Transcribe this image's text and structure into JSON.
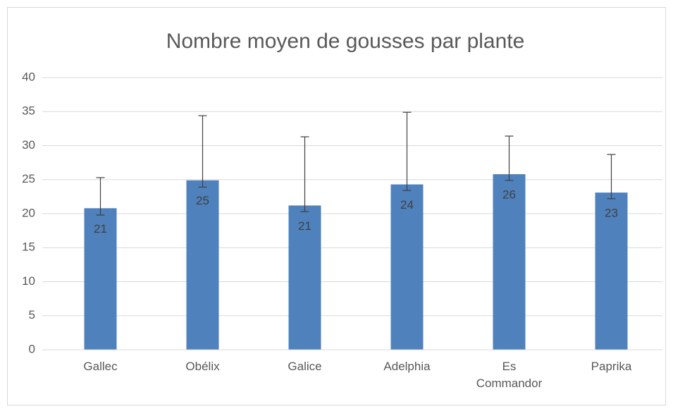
{
  "chart_data": {
    "type": "bar",
    "title": "Nombre moyen de gousses par plante",
    "categories": [
      "Gallec",
      "Obélix",
      "Galice",
      "Adelphia",
      "Es Commandor",
      "Paprika"
    ],
    "values": [
      20.8,
      24.9,
      21.2,
      24.3,
      25.8,
      23.1
    ],
    "value_labels": [
      "21",
      "25",
      "21",
      "24",
      "26",
      "23"
    ],
    "error_plus": [
      4.5,
      9.5,
      10.1,
      10.6,
      5.6,
      5.6
    ],
    "error_minus": [
      1.0,
      1.0,
      0.9,
      0.9,
      0.9,
      0.9
    ],
    "color": "#4f81bd",
    "ylim": [
      0,
      40
    ],
    "yticks": [
      0,
      5,
      10,
      15,
      20,
      25,
      30,
      35,
      40
    ],
    "grid": true
  }
}
